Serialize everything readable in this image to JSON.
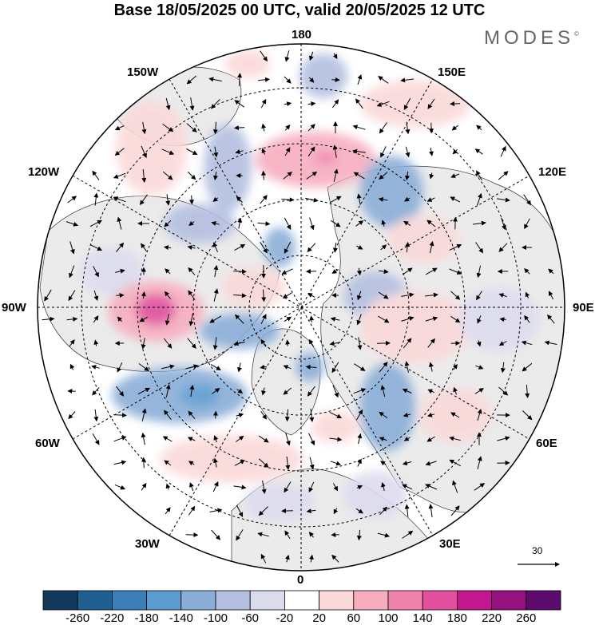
{
  "title": "Base 18/05/2025 00 UTC, valid 20/05/2025 12 UTC",
  "brand": "MODES",
  "brand_mark": "©",
  "longitude_labels": {
    "lon_180": "180",
    "lon_150E": "150E",
    "lon_120E": "120E",
    "lon_90E": "90E",
    "lon_60E": "60E",
    "lon_30E": "30E",
    "lon_0": "0",
    "lon_30W": "30W",
    "lon_60W": "60W",
    "lon_90W": "90W",
    "lon_120W": "120W",
    "lon_150W": "150W"
  },
  "wind_reference": {
    "value": "30"
  },
  "colorbar": {
    "labels": [
      "-260",
      "-220",
      "-180",
      "-140",
      "-100",
      "-60",
      "-20",
      "20",
      "60",
      "100",
      "140",
      "180",
      "220",
      "260"
    ],
    "colors": [
      "#123a5c",
      "#1f5f93",
      "#3a7fb8",
      "#5d9bd0",
      "#8aaed8",
      "#b4bfe0",
      "#dcdcef",
      "#ffffff",
      "#fbd9d9",
      "#f7aebf",
      "#f083ac",
      "#e24f9d",
      "#c4178f",
      "#95117f",
      "#5c0a6d"
    ]
  },
  "colors": {
    "land": "#ebebeb",
    "ocean": "#ffffff",
    "positive_anomaly": "#f7aebf",
    "negative_anomaly": "#8aaed8",
    "grid": "#000000"
  }
}
